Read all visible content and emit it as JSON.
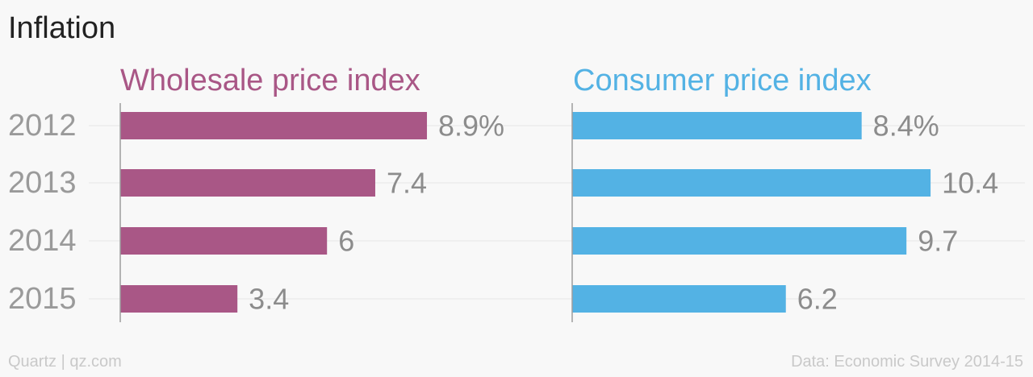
{
  "chart_data": {
    "type": "bar",
    "orientation": "horizontal",
    "title": "Inflation",
    "categories": [
      "2012",
      "2013",
      "2014",
      "2015"
    ],
    "series": [
      {
        "name": "Wholesale price index",
        "values": [
          8.9,
          7.4,
          6,
          3.4
        ],
        "labels": [
          "8.9%",
          "7.4",
          "6",
          "3.4"
        ],
        "color": "#a95786"
      },
      {
        "name": "Consumer price index",
        "values": [
          8.4,
          10.4,
          9.7,
          6.2
        ],
        "labels": [
          "8.4%",
          "10.4",
          "9.7",
          "6.2"
        ],
        "color": "#53b2e4"
      }
    ],
    "xlim": [
      0,
      10.4
    ],
    "grid": true,
    "legend": "none"
  },
  "footer": {
    "left": "Quartz | qz.com",
    "right": "Data: Economic Survey 2014-15"
  },
  "colors": {
    "background": "#f8f8f8",
    "title": "#222222",
    "category_label": "#9a9a9a",
    "value_label": "#8c8c8c",
    "gridline": "#e6e6e6",
    "axis": "#9e9e9e",
    "footer": "#c9c9c9"
  }
}
